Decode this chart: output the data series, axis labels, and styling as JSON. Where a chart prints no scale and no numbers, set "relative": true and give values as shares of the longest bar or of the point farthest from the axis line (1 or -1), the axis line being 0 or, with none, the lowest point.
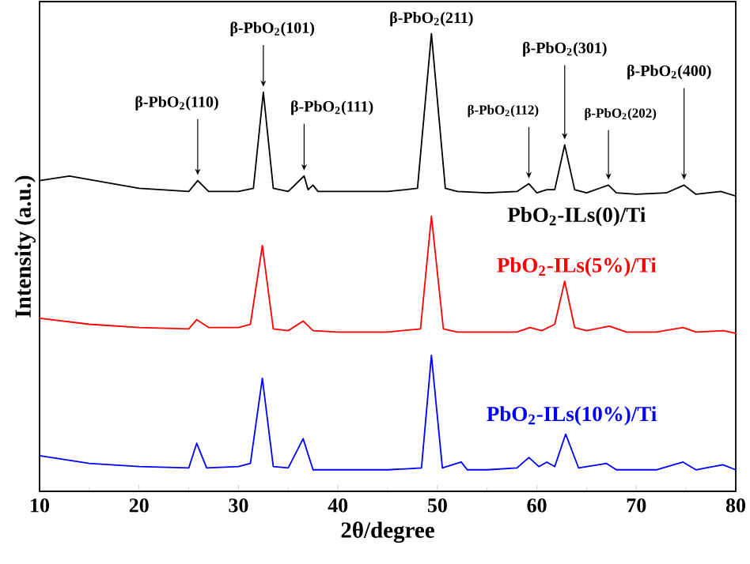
{
  "chart_data": {
    "type": "line",
    "relative": true,
    "xlabel": "2θ/degree",
    "ylabel": "Intensity (a.u.)",
    "xlim": [
      10,
      80
    ],
    "xticks": [
      10,
      20,
      30,
      40,
      50,
      60,
      70,
      80
    ],
    "tick_labels": "x",
    "series": [
      {
        "name": "PbO$_{2}$-ILs(0)/Ti",
        "color": "#000000",
        "x": [
          10,
          13,
          20,
          25,
          25.9,
          27,
          30,
          31.5,
          32.5,
          33.5,
          35,
          36.6,
          37.0,
          37.5,
          38,
          40,
          45,
          48,
          49.4,
          50.8,
          52,
          55,
          58,
          59.2,
          60,
          61,
          61.8,
          62.8,
          63.8,
          65,
          67.2,
          68,
          70,
          73,
          74.8,
          76,
          78.5,
          80
        ],
        "values": [
          0.679,
          0.689,
          0.662,
          0.655,
          0.679,
          0.655,
          0.655,
          0.662,
          0.872,
          0.662,
          0.655,
          0.689,
          0.659,
          0.669,
          0.655,
          0.655,
          0.655,
          0.662,
          1.0,
          0.662,
          0.655,
          0.652,
          0.655,
          0.672,
          0.652,
          0.659,
          0.659,
          0.757,
          0.659,
          0.652,
          0.669,
          0.652,
          0.649,
          0.652,
          0.669,
          0.649,
          0.655,
          0.645
        ]
      },
      {
        "name": "PbO$_{2}$-ILs(5%)/Ti",
        "color": "#ff0000",
        "x": [
          10,
          15,
          20,
          25,
          25.8,
          27,
          30,
          31.2,
          32.4,
          33.5,
          35,
          36.5,
          37.5,
          40,
          45,
          48.3,
          49.4,
          50.6,
          52,
          55,
          58,
          59.3,
          60.5,
          61.8,
          62.8,
          63.8,
          65,
          67.3,
          69,
          72,
          74.7,
          76,
          78.8,
          80
        ],
        "values": [
          0.378,
          0.365,
          0.358,
          0.355,
          0.375,
          0.358,
          0.358,
          0.365,
          0.537,
          0.355,
          0.351,
          0.372,
          0.351,
          0.348,
          0.348,
          0.355,
          0.601,
          0.355,
          0.348,
          0.348,
          0.348,
          0.358,
          0.351,
          0.365,
          0.459,
          0.358,
          0.351,
          0.361,
          0.348,
          0.348,
          0.358,
          0.348,
          0.351,
          0.345
        ]
      },
      {
        "name": "PbO$_{2}$-ILs(10%)/Ti",
        "color": "#0000ff",
        "x": [
          10,
          15,
          20,
          25,
          25.8,
          26.8,
          30,
          31.2,
          32.4,
          33.5,
          35,
          36.5,
          37.5,
          40,
          45,
          48.4,
          49.4,
          50.5,
          52.4,
          53,
          55,
          58,
          59.2,
          60.2,
          61,
          61.8,
          62.9,
          64.2,
          67,
          68,
          70,
          72,
          74.7,
          76,
          77,
          78.7,
          80
        ],
        "values": [
          0.078,
          0.061,
          0.054,
          0.051,
          0.105,
          0.051,
          0.054,
          0.061,
          0.247,
          0.054,
          0.051,
          0.115,
          0.047,
          0.047,
          0.047,
          0.051,
          0.297,
          0.051,
          0.064,
          0.047,
          0.047,
          0.051,
          0.074,
          0.054,
          0.064,
          0.054,
          0.125,
          0.051,
          0.061,
          0.047,
          0.047,
          0.047,
          0.064,
          0.047,
          0.051,
          0.058,
          0.047
        ]
      }
    ],
    "annotations": [
      {
        "text": "β-PbO$_{2}$(110)",
        "x": 25.9,
        "y": 0.679
      },
      {
        "text": "β-PbO$_{2}$(101)",
        "x": 32.5,
        "y": 0.872
      },
      {
        "text": "β-PbO$_{2}$(111)",
        "x": 36.6,
        "y": 0.689
      },
      {
        "text": "β-PbO$_{2}$(211)",
        "x": 49.4,
        "y": 1.0
      },
      {
        "text": "β-PbO$_{2}$(112)",
        "x": 59.2,
        "y": 0.672
      },
      {
        "text": "β-PbO$_{2}$(301)",
        "x": 62.8,
        "y": 0.757
      },
      {
        "text": "β-PbO$_{2}$(202)",
        "x": 67.2,
        "y": 0.669
      },
      {
        "text": "β-PbO$_{2}$(400)",
        "x": 74.8,
        "y": 0.669
      }
    ]
  }
}
